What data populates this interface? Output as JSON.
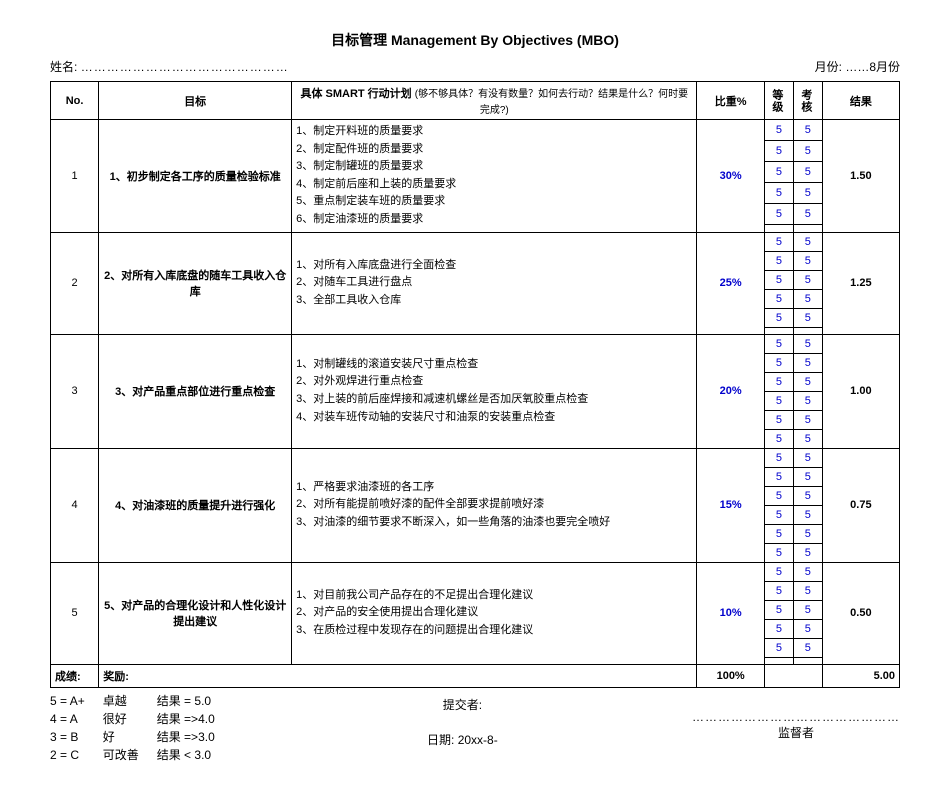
{
  "title": "目标管理 Management By Objectives (MBO)",
  "header": {
    "name_label": "姓名:",
    "name_dots": "…………………………………………",
    "month_label": "月份:",
    "month_value": "……8月份"
  },
  "columns": {
    "no": "No.",
    "objective": "目标",
    "plan": "具体 SMART 行动计划",
    "plan_sub": "(够不够具体？有没有数量？如何去行动？结果是什么？何时要完成?)",
    "weight": "比重%",
    "grade": "等级",
    "score": "考核",
    "result": "结果"
  },
  "rows": [
    {
      "no": "1",
      "objective": "1、初步制定各工序的质量检验标准",
      "plans": [
        "1、制定开料班的质量要求",
        "2、制定配件班的质量要求",
        "3、制定制罐班的质量要求",
        "4、制定前后座和上装的质量要求",
        "5、重点制定装车班的质量要求",
        "6、制定油漆班的质量要求"
      ],
      "weight": "30%",
      "grades": [
        "5",
        "5",
        "5",
        "5",
        "5",
        ""
      ],
      "scores": [
        "5",
        "5",
        "5",
        "5",
        "5",
        ""
      ],
      "result": "1.50"
    },
    {
      "no": "2",
      "objective": "2、对所有入库底盘的随车工具收入仓库",
      "plans": [
        "",
        "1、对所有入库底盘进行全面检查",
        "2、对随车工具进行盘点",
        "3、全部工具收入仓库",
        "",
        ""
      ],
      "weight": "25%",
      "grades": [
        "5",
        "5",
        "5",
        "5",
        "5",
        ""
      ],
      "scores": [
        "5",
        "5",
        "5",
        "5",
        "5",
        ""
      ],
      "result": "1.25"
    },
    {
      "no": "3",
      "objective": "3、对产品重点部位进行重点检查",
      "plans": [
        "",
        "1、对制罐线的滚道安装尺寸重点检查",
        "2、对外观焊进行重点检查",
        "3、对上装的前后座焊接和减速机螺丝是否加厌氧胶重点检查",
        "4、对装车班传动轴的安装尺寸和油泵的安装重点检查",
        ""
      ],
      "weight": "20%",
      "grades": [
        "5",
        "5",
        "5",
        "5",
        "5",
        "5"
      ],
      "scores": [
        "5",
        "5",
        "5",
        "5",
        "5",
        "5"
      ],
      "result": "1.00"
    },
    {
      "no": "4",
      "objective": "4、对油漆班的质量提升进行强化",
      "plans": [
        "",
        "1、严格要求油漆班的各工序",
        "2、对所有能提前喷好漆的配件全部要求提前喷好漆",
        "3、对油漆的细节要求不断深入，如一些角落的油漆也要完全喷好",
        "",
        ""
      ],
      "weight": "15%",
      "grades": [
        "5",
        "5",
        "5",
        "5",
        "5",
        "5"
      ],
      "scores": [
        "5",
        "5",
        "5",
        "5",
        "5",
        "5"
      ],
      "result": "0.75"
    },
    {
      "no": "5",
      "objective": "5、对产品的合理化设计和人性化设计提出建议",
      "plans": [
        "",
        "1、对目前我公司产品存在的不足提出合理化建议",
        "2、对产品的安全使用提出合理化建议",
        "3、在质检过程中发现存在的问题提出合理化建议",
        "",
        ""
      ],
      "weight": "10%",
      "grades": [
        "5",
        "5",
        "5",
        "5",
        "5",
        ""
      ],
      "scores": [
        "5",
        "5",
        "5",
        "5",
        "5",
        ""
      ],
      "result": "0.50"
    }
  ],
  "totals": {
    "grade_label": "成绩:",
    "reward_label": "奖励:",
    "weight_total": "100%",
    "result_total": "5.00"
  },
  "legend": {
    "lines": [
      {
        "code": "5 = A+",
        "desc": "卓越",
        "rule": "结果 = 5.0"
      },
      {
        "code": "4 = A",
        "desc": "很好",
        "rule": "结果 =>4.0"
      },
      {
        "code": "3 = B",
        "desc": "好",
        "rule": "结果 =>3.0"
      },
      {
        "code": "2 = C",
        "desc": "可改善",
        "rule": "结果 < 3.0"
      }
    ]
  },
  "footer": {
    "submit_label": "提交者:",
    "date_label": "日期: 20xx-8-",
    "supervisor_dots": "…………………………………………",
    "supervisor_label": "监督者"
  }
}
